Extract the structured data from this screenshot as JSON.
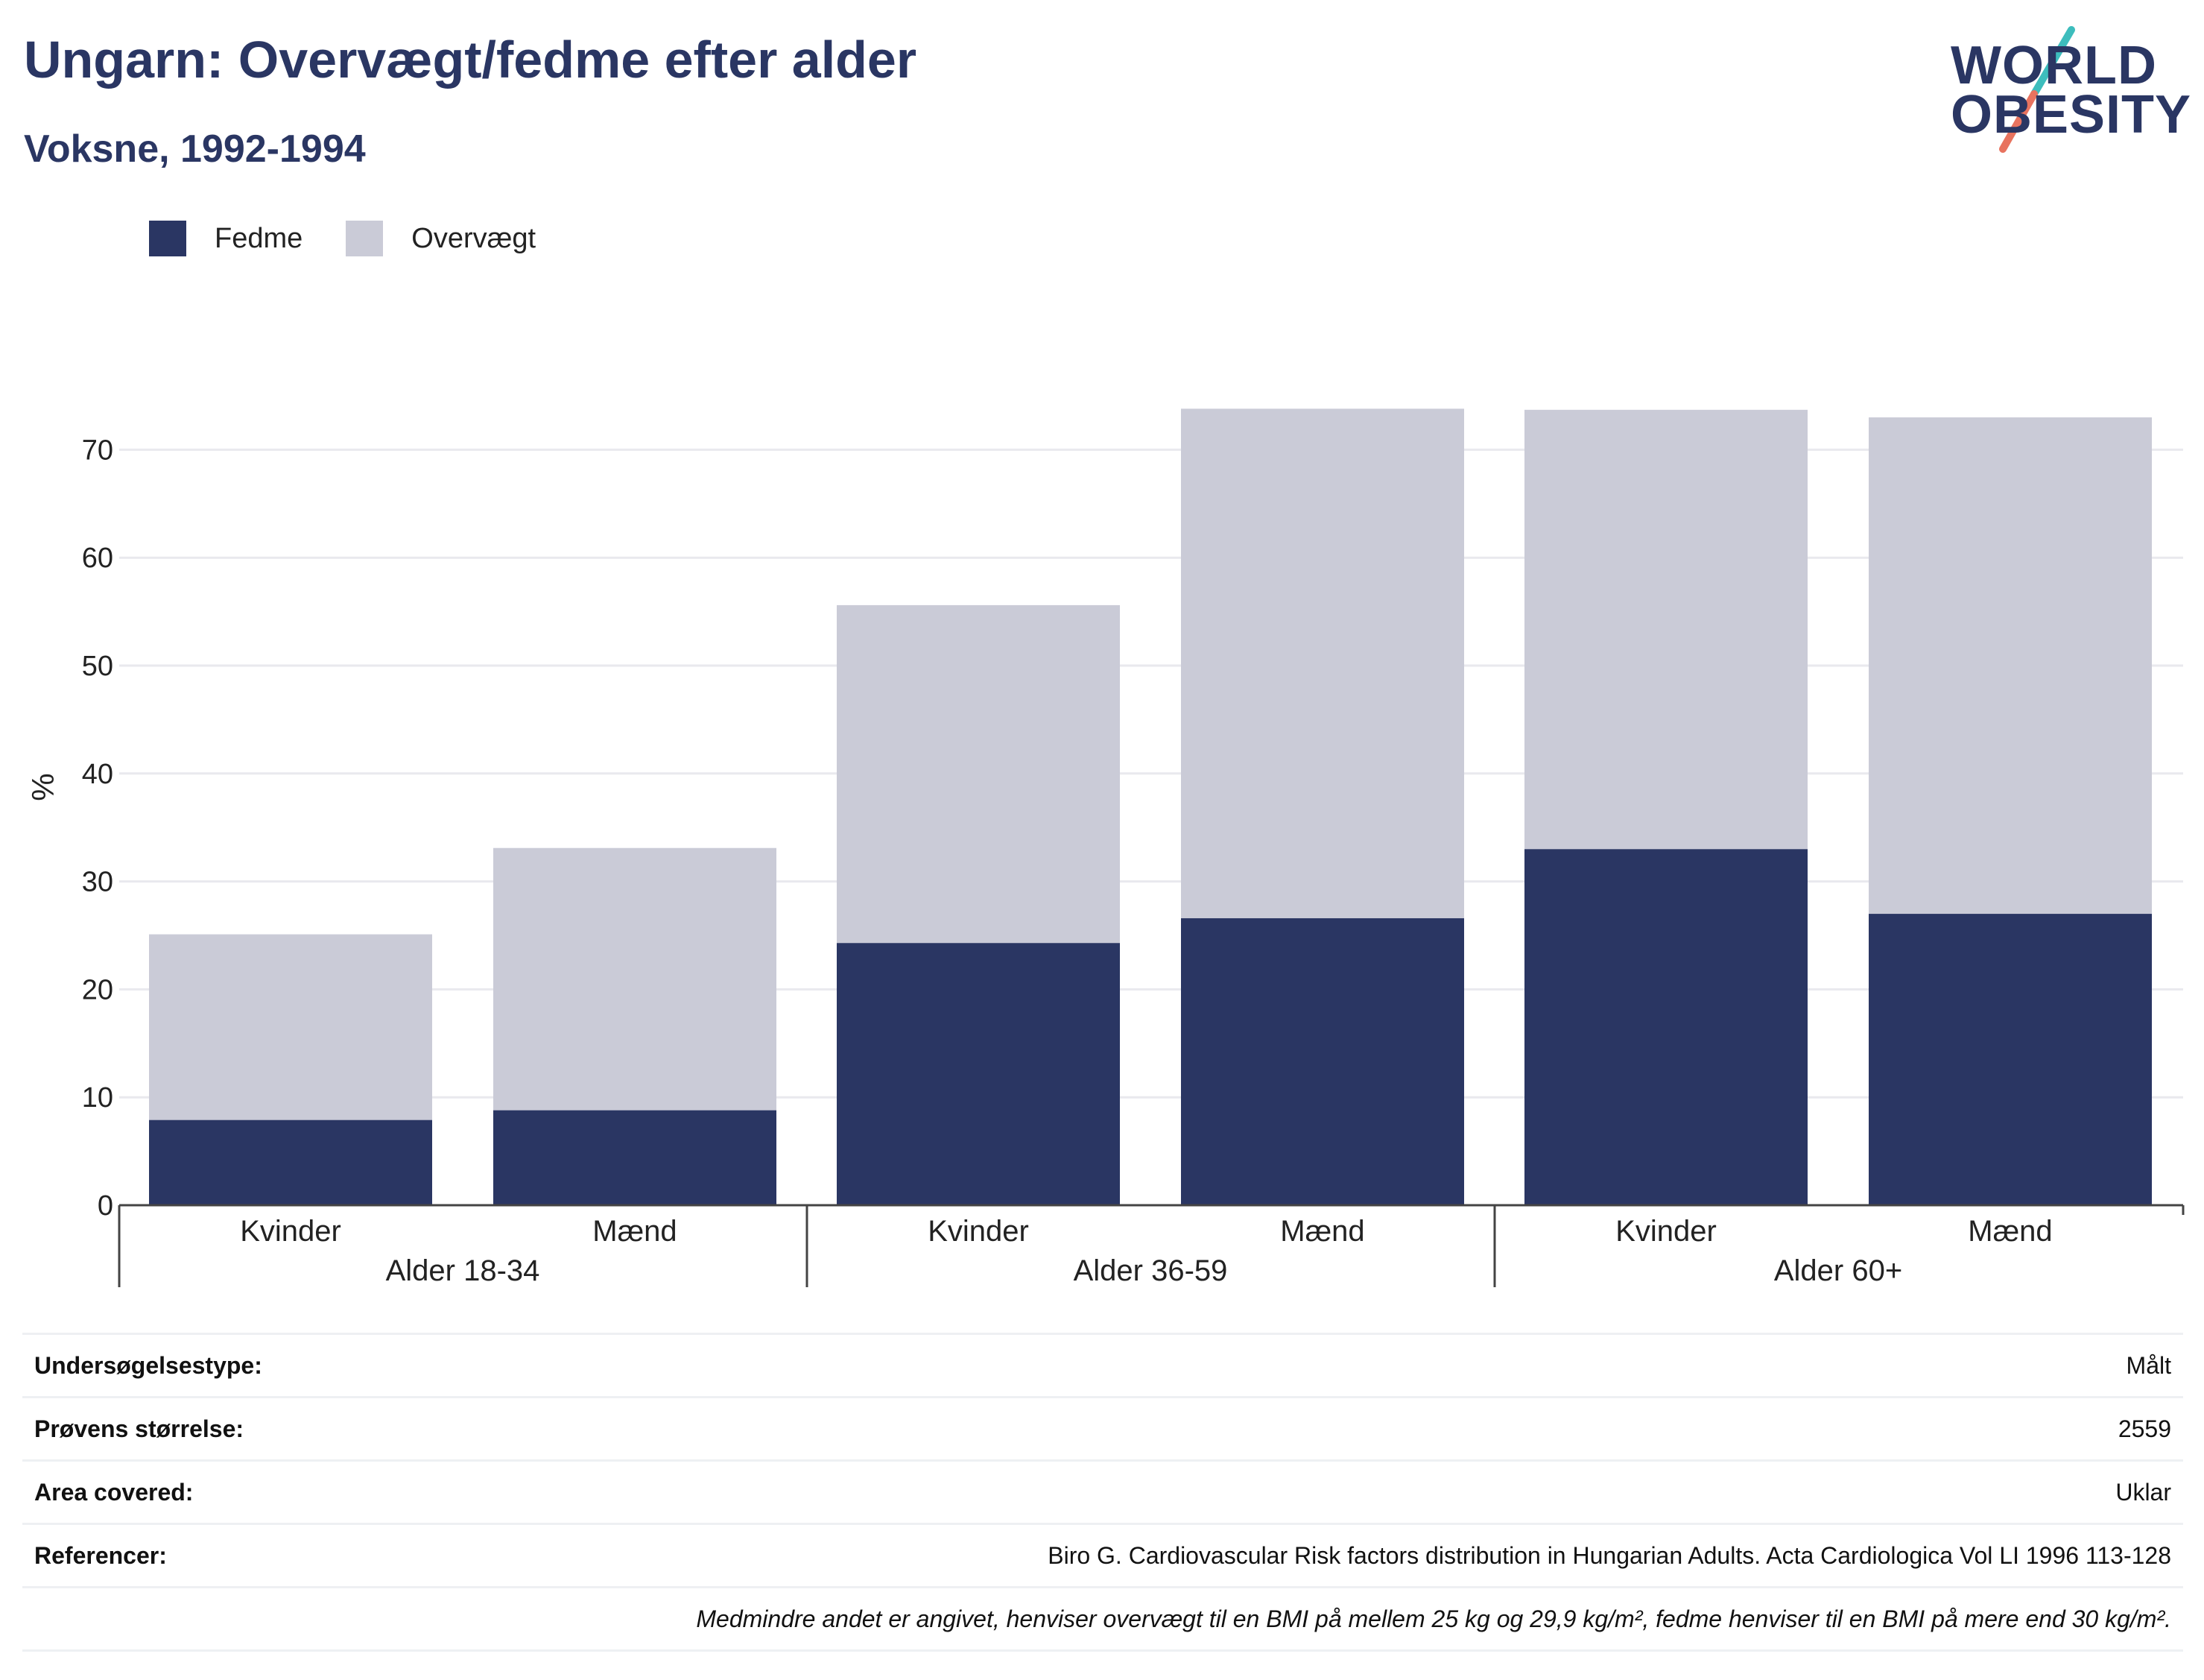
{
  "header": {
    "title": "Ungarn: Overvægt/fedme efter alder",
    "subtitle": "Voksne, 1992-1994"
  },
  "logo": {
    "line1": "WORLD",
    "line2": "OBESITY"
  },
  "colors": {
    "fedme": "#2a3663",
    "overvaegt": "#cacbd7",
    "grid": "#e9e9ee",
    "logo_teal": "#3dbdbd",
    "logo_coral": "#e8735f"
  },
  "chart_data": {
    "type": "bar",
    "stacked": true,
    "ylabel": "%",
    "ylim": [
      0,
      75
    ],
    "yticks": [
      0,
      10,
      20,
      30,
      40,
      50,
      60,
      70
    ],
    "grid": true,
    "legend_placement": "top-left",
    "groups": [
      {
        "label": "Alder 18-34",
        "categories": [
          "Kvinder",
          "Mænd"
        ]
      },
      {
        "label": "Alder 36-59",
        "categories": [
          "Kvinder",
          "Mænd"
        ]
      },
      {
        "label": "Alder 60+",
        "categories": [
          "Kvinder",
          "Mænd"
        ]
      }
    ],
    "series": [
      {
        "name": "Fedme",
        "values": [
          7.9,
          8.8,
          24.3,
          26.6,
          33.0,
          27.0
        ]
      },
      {
        "name": "Overvægt",
        "values": [
          17.2,
          24.3,
          31.3,
          47.2,
          40.7,
          46.0
        ]
      }
    ]
  },
  "info": {
    "rows": [
      {
        "label": "Undersøgelsestype:",
        "value": "Målt"
      },
      {
        "label": "Prøvens størrelse:",
        "value": "2559"
      },
      {
        "label": "Area covered:",
        "value": "Uklar"
      },
      {
        "label": "Referencer:",
        "value": "Biro G. Cardiovascular Risk factors distribution in Hungarian Adults. Acta Cardiologica Vol LI 1996 113-128"
      }
    ],
    "note": "Medmindre andet er angivet, henviser overvægt til en BMI på mellem 25 kg og 29,9 kg/m², fedme henviser til en BMI på mere end 30 kg/m²."
  }
}
